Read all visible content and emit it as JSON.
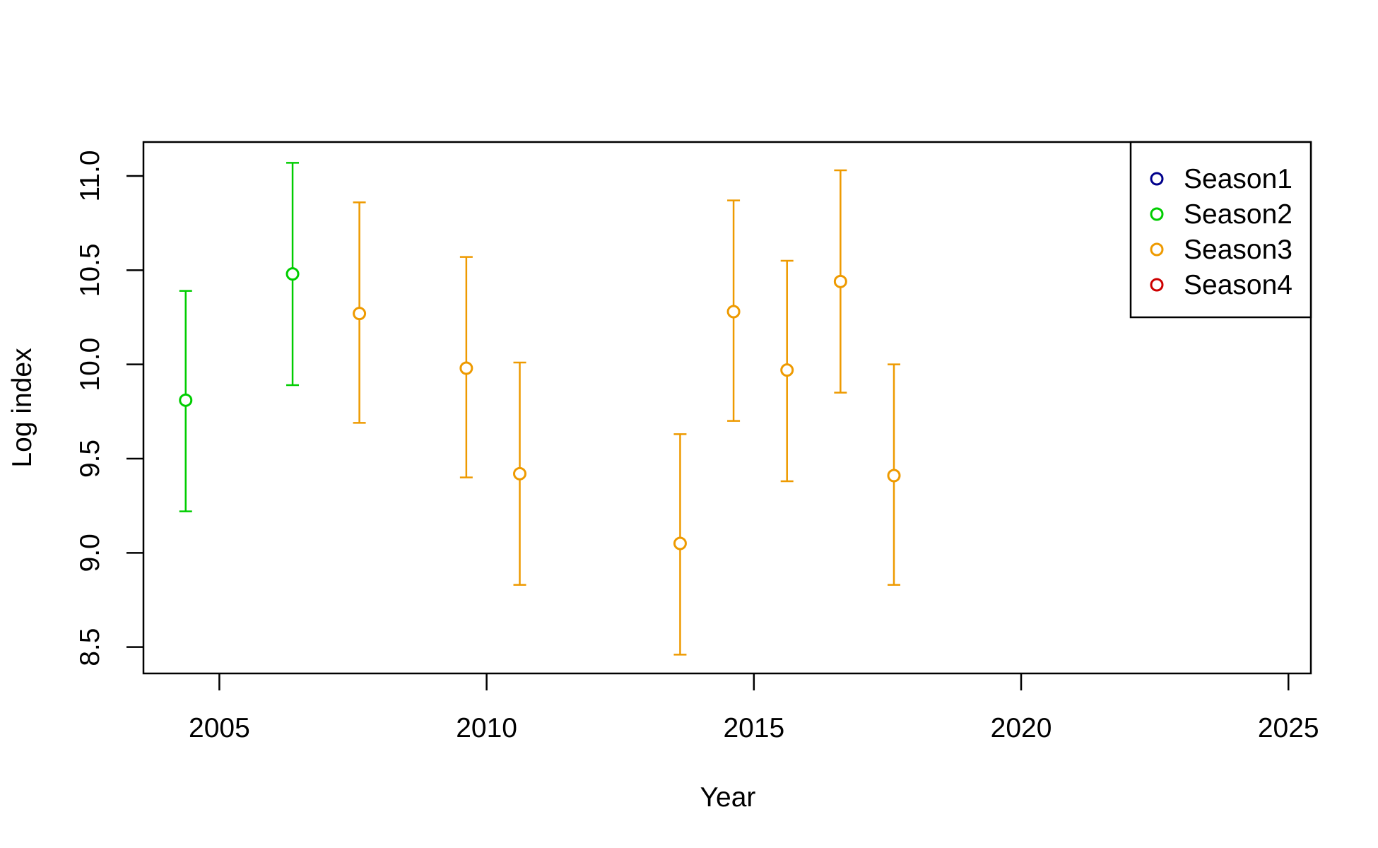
{
  "chart_data": {
    "type": "scatter",
    "title": "",
    "xlabel": "Year",
    "ylabel": "Log index",
    "xlim": [
      2003.58,
      2025.42
    ],
    "ylim": [
      8.36,
      11.18
    ],
    "xticks": [
      2005,
      2010,
      2015,
      2020,
      2025
    ],
    "xtick_labels": [
      "2005",
      "2010",
      "2015",
      "2020",
      "2025"
    ],
    "yticks": [
      8.5,
      9.0,
      9.5,
      10.0,
      10.5,
      11.0
    ],
    "ytick_labels": [
      "8.5",
      "9.0",
      "9.5",
      "10.0",
      "10.5",
      "11.0"
    ],
    "grid": false,
    "legend_position": "top-right",
    "series": [
      {
        "name": "Season1",
        "color": "#00008b",
        "points": []
      },
      {
        "name": "Season2",
        "color": "#00cd00",
        "points": [
          {
            "x": 2004.37,
            "y": 9.81,
            "lower": 9.22,
            "upper": 10.39
          },
          {
            "x": 2006.37,
            "y": 10.48,
            "lower": 9.89,
            "upper": 11.07
          }
        ]
      },
      {
        "name": "Season3",
        "color": "#ee9a00",
        "points": [
          {
            "x": 2007.62,
            "y": 10.27,
            "lower": 9.69,
            "upper": 10.86
          },
          {
            "x": 2009.62,
            "y": 9.98,
            "lower": 9.4,
            "upper": 10.57
          },
          {
            "x": 2010.62,
            "y": 9.42,
            "lower": 8.83,
            "upper": 10.01
          },
          {
            "x": 2013.62,
            "y": 9.05,
            "lower": 8.46,
            "upper": 9.63
          },
          {
            "x": 2014.62,
            "y": 10.28,
            "lower": 9.7,
            "upper": 10.87
          },
          {
            "x": 2015.62,
            "y": 9.97,
            "lower": 9.38,
            "upper": 10.55
          },
          {
            "x": 2016.62,
            "y": 10.44,
            "lower": 9.85,
            "upper": 11.03
          },
          {
            "x": 2017.62,
            "y": 9.41,
            "lower": 8.83,
            "upper": 10.0
          }
        ]
      },
      {
        "name": "Season4",
        "color": "#cd0000",
        "points": []
      }
    ]
  }
}
